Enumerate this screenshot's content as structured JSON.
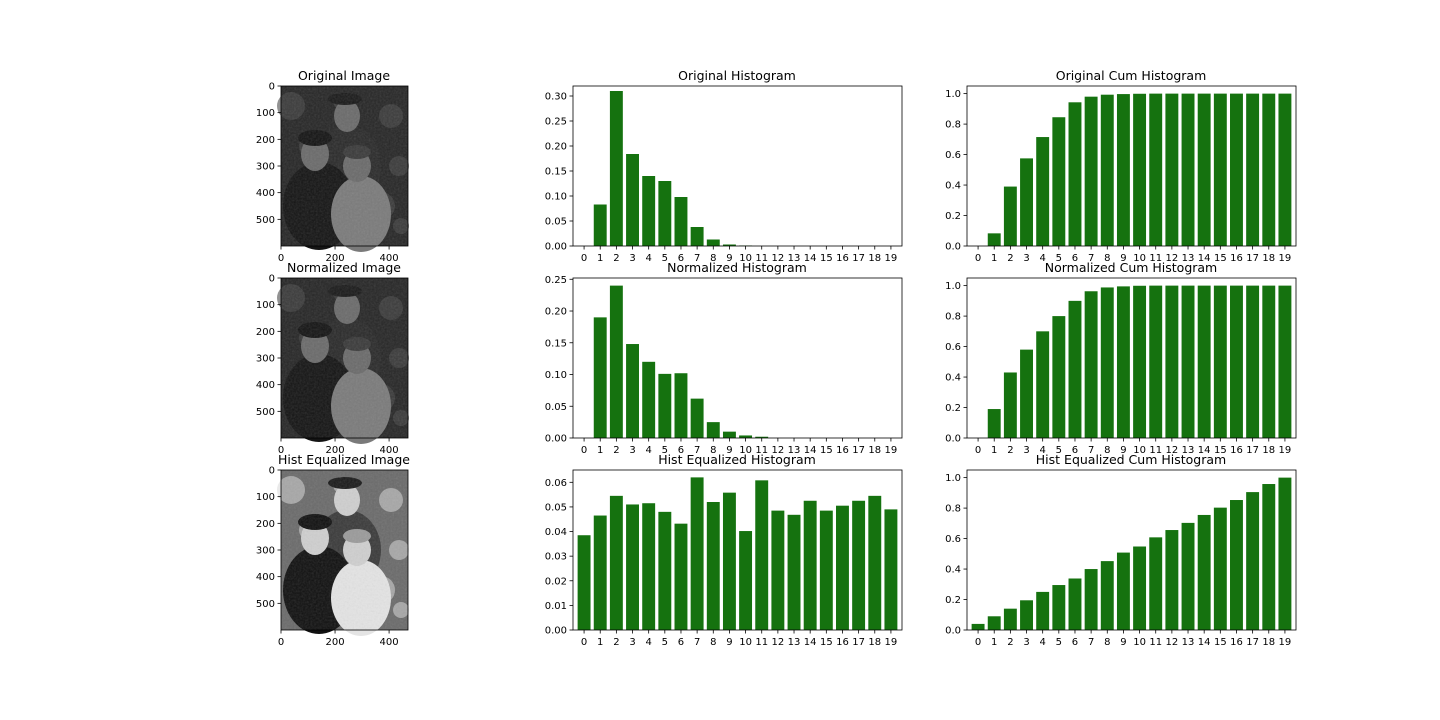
{
  "colors": {
    "bar": "#15720f",
    "axis": "#000000",
    "background": "#ffffff"
  },
  "images": [
    {
      "title": "Original Image",
      "tone": "dark",
      "yticks": [
        0,
        100,
        200,
        300,
        400,
        500
      ],
      "xticks": [
        0,
        200,
        400
      ],
      "height": 600,
      "width": 470
    },
    {
      "title": "Normalized Image",
      "tone": "dark",
      "yticks": [
        0,
        100,
        200,
        300,
        400,
        500
      ],
      "xticks": [
        0,
        200,
        400
      ],
      "height": 600,
      "width": 470
    },
    {
      "title": "Hist Equalized Image",
      "tone": "equalized",
      "yticks": [
        0,
        100,
        200,
        300,
        400,
        500
      ],
      "xticks": [
        0,
        200,
        400
      ],
      "height": 600,
      "width": 470
    }
  ],
  "chart_data": [
    {
      "type": "bar",
      "title": "Original Histogram",
      "categories": [
        "0",
        "1",
        "2",
        "3",
        "4",
        "5",
        "6",
        "7",
        "8",
        "9",
        "10",
        "11",
        "12",
        "13",
        "14",
        "15",
        "16",
        "17",
        "18",
        "19"
      ],
      "values": [
        0,
        0.083,
        0.31,
        0.184,
        0.14,
        0.13,
        0.098,
        0.038,
        0.013,
        0.003,
        0.001,
        0,
        0,
        0,
        0,
        0,
        0,
        0,
        0,
        0
      ],
      "ylim": [
        0,
        0.32
      ],
      "yticks": [
        "0.00",
        "0.05",
        "0.10",
        "0.15",
        "0.20",
        "0.25",
        "0.30"
      ]
    },
    {
      "type": "bar",
      "title": "Original Cum Histogram",
      "categories": [
        "0",
        "1",
        "2",
        "3",
        "4",
        "5",
        "6",
        "7",
        "8",
        "9",
        "10",
        "11",
        "12",
        "13",
        "14",
        "15",
        "16",
        "17",
        "18",
        "19"
      ],
      "values": [
        0,
        0.083,
        0.39,
        0.575,
        0.715,
        0.845,
        0.943,
        0.98,
        0.993,
        0.997,
        0.999,
        1,
        1,
        1,
        1,
        1,
        1,
        1,
        1,
        1
      ],
      "ylim": [
        0,
        1.05
      ],
      "yticks": [
        "0.0",
        "0.2",
        "0.4",
        "0.6",
        "0.8",
        "1.0"
      ]
    },
    {
      "type": "bar",
      "title": "Normalized Histogram",
      "categories": [
        "0",
        "1",
        "2",
        "3",
        "4",
        "5",
        "6",
        "7",
        "8",
        "9",
        "10",
        "11",
        "12",
        "13",
        "14",
        "15",
        "16",
        "17",
        "18",
        "19"
      ],
      "values": [
        0,
        0.19,
        0.24,
        0.148,
        0.12,
        0.101,
        0.102,
        0.062,
        0.025,
        0.01,
        0.004,
        0.002,
        0,
        0,
        0,
        0,
        0,
        0,
        0,
        0
      ],
      "ylim": [
        0,
        0.252
      ],
      "yticks": [
        "0.00",
        "0.05",
        "0.10",
        "0.15",
        "0.20",
        "0.25"
      ]
    },
    {
      "type": "bar",
      "title": "Normalized Cum Histogram",
      "categories": [
        "0",
        "1",
        "2",
        "3",
        "4",
        "5",
        "6",
        "7",
        "8",
        "9",
        "10",
        "11",
        "12",
        "13",
        "14",
        "15",
        "16",
        "17",
        "18",
        "19"
      ],
      "values": [
        0,
        0.19,
        0.43,
        0.58,
        0.7,
        0.8,
        0.9,
        0.963,
        0.988,
        0.995,
        0.999,
        1,
        1,
        1,
        1,
        1,
        1,
        1,
        1,
        1
      ],
      "ylim": [
        0,
        1.05
      ],
      "yticks": [
        "0.0",
        "0.2",
        "0.4",
        "0.6",
        "0.8",
        "1.0"
      ]
    },
    {
      "type": "bar",
      "title": "Hist Equalized Histogram",
      "categories": [
        "0",
        "1",
        "2",
        "3",
        "4",
        "5",
        "6",
        "7",
        "8",
        "9",
        "10",
        "11",
        "12",
        "13",
        "14",
        "15",
        "16",
        "17",
        "18",
        "19"
      ],
      "values": [
        0.0385,
        0.0465,
        0.0545,
        0.051,
        0.0515,
        0.048,
        0.0432,
        0.062,
        0.052,
        0.0558,
        0.0402,
        0.0608,
        0.0485,
        0.0468,
        0.0525,
        0.0485,
        0.0505,
        0.0525,
        0.0545,
        0.049
      ],
      "ylim": [
        0,
        0.065
      ],
      "yticks": [
        "0.00",
        "0.01",
        "0.02",
        "0.03",
        "0.04",
        "0.05",
        "0.06"
      ]
    },
    {
      "type": "bar",
      "title": "Hist Equalized Cum Histogram",
      "categories": [
        "0",
        "1",
        "2",
        "3",
        "4",
        "5",
        "6",
        "7",
        "8",
        "9",
        "10",
        "11",
        "12",
        "13",
        "14",
        "15",
        "16",
        "17",
        "18",
        "19"
      ],
      "values": [
        0.04,
        0.09,
        0.14,
        0.195,
        0.25,
        0.295,
        0.338,
        0.4,
        0.452,
        0.508,
        0.548,
        0.608,
        0.656,
        0.703,
        0.755,
        0.803,
        0.853,
        0.905,
        0.958,
        1.0
      ],
      "ylim": [
        0,
        1.05
      ],
      "yticks": [
        "0.0",
        "0.2",
        "0.4",
        "0.6",
        "0.8",
        "1.0"
      ]
    }
  ]
}
